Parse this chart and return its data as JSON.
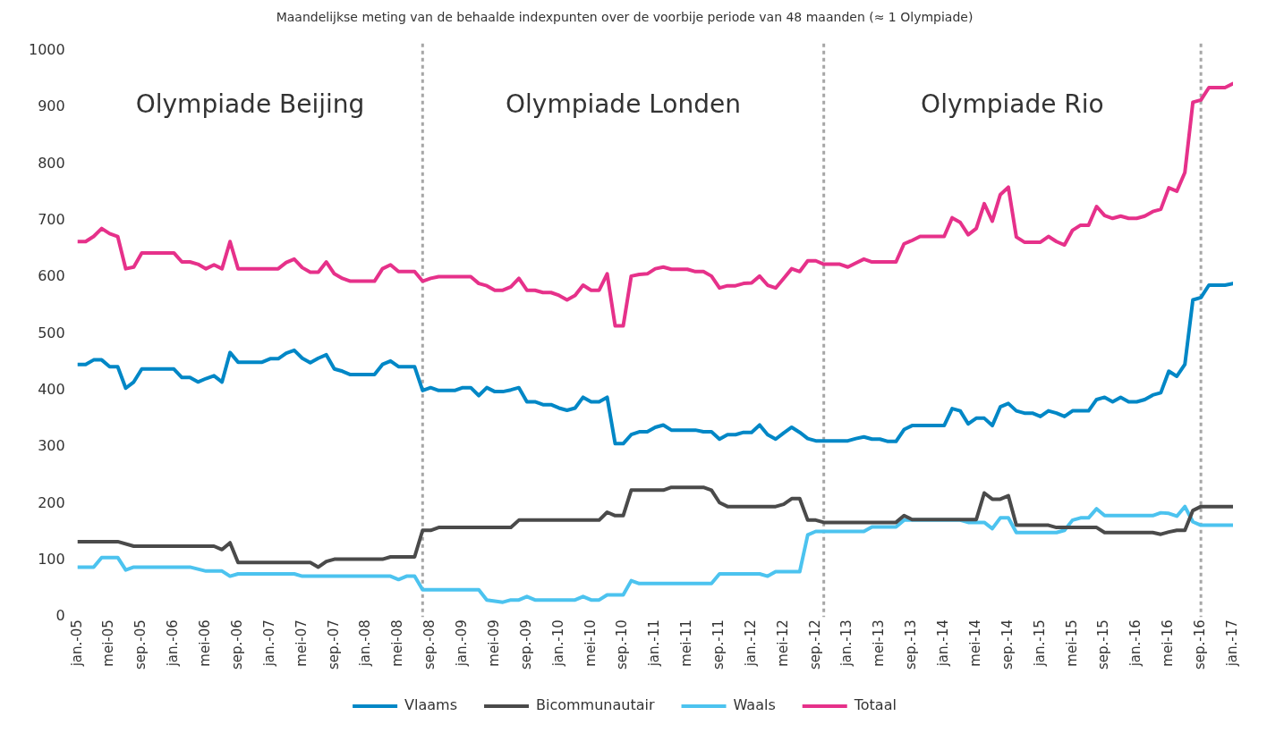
{
  "chart_data": {
    "type": "line",
    "title": "Maandelijkse meting van de behaalde indexpunten over de voorbije periode van 48 maanden (≈ 1 Olympiade)",
    "annotations": [
      "Olympiade Beijing",
      "Olympiade Londen",
      "Olympiade Rio"
    ],
    "series": [
      {
        "name": "Vlaams",
        "color": "#0087c6",
        "x": [
          "2005-01",
          "2005-02",
          "2005-03",
          "2005-04",
          "2005-05",
          "2005-06",
          "2005-07",
          "2005-08",
          "2005-09",
          "2006-01",
          "2006-02",
          "2006-03",
          "2006-04",
          "2006-05",
          "2006-06",
          "2006-07",
          "2006-08",
          "2006-09",
          "2006-12",
          "2007-01",
          "2007-02",
          "2007-03",
          "2007-04",
          "2007-05",
          "2007-06",
          "2007-07",
          "2007-08",
          "2007-09",
          "2007-10",
          "2007-11",
          "2008-02",
          "2008-03",
          "2008-04",
          "2008-05",
          "2008-07",
          "2008-08",
          "2008-09",
          "2008-10",
          "2008-12",
          "2009-01",
          "2009-02",
          "2009-03",
          "2009-04",
          "2009-05",
          "2009-06",
          "2009-07",
          "2009-08",
          "2009-09",
          "2009-10",
          "2009-11",
          "2009-12",
          "2010-01",
          "2010-02",
          "2010-03",
          "2010-04",
          "2010-05",
          "2010-06",
          "2010-07",
          "2010-08",
          "2010-09",
          "2010-10",
          "2010-11",
          "2010-12",
          "2011-01",
          "2011-02",
          "2011-03",
          "2011-06",
          "2011-07",
          "2011-08",
          "2011-09",
          "2011-10",
          "2011-11",
          "2011-12",
          "2012-01",
          "2012-02",
          "2012-03",
          "2012-04",
          "2012-05",
          "2012-06",
          "2012-07",
          "2012-08",
          "2012-09",
          "2013-01",
          "2013-02",
          "2013-03",
          "2013-04",
          "2013-05",
          "2013-06",
          "2013-07",
          "2013-08",
          "2013-09",
          "2014-01",
          "2014-02",
          "2014-03",
          "2014-04",
          "2014-05",
          "2014-06",
          "2014-07",
          "2014-08",
          "2014-09",
          "2014-10",
          "2014-11",
          "2014-12",
          "2015-01",
          "2015-02",
          "2015-03",
          "2015-04",
          "2015-05",
          "2015-07",
          "2015-08",
          "2015-09",
          "2015-10",
          "2015-11",
          "2015-12",
          "2016-01",
          "2016-02",
          "2016-03",
          "2016-04",
          "2016-05",
          "2016-06",
          "2016-07",
          "2016-08",
          "2016-09",
          "2016-10",
          "2016-12",
          "2017-01"
        ],
        "values": [
          446,
          446,
          454,
          454,
          442,
          442,
          404,
          415,
          438,
          438,
          423,
          423,
          415,
          421,
          426,
          415,
          467,
          450,
          450,
          456,
          456,
          466,
          471,
          457,
          449,
          457,
          463,
          438,
          434,
          428,
          428,
          446,
          452,
          442,
          442,
          400,
          405,
          400,
          400,
          405,
          405,
          391,
          405,
          398,
          398,
          401,
          405,
          380,
          380,
          375,
          375,
          369,
          365,
          369,
          388,
          380,
          380,
          388,
          306,
          306,
          322,
          327,
          327,
          335,
          339,
          330,
          330,
          327,
          327,
          314,
          322,
          322,
          326,
          326,
          339,
          322,
          314,
          325,
          335,
          326,
          315,
          311,
          311,
          315,
          318,
          314,
          314,
          310,
          310,
          331,
          338,
          338,
          368,
          364,
          341,
          351,
          351,
          338,
          371,
          377,
          364,
          360,
          360,
          354,
          364,
          360,
          354,
          364,
          364,
          384,
          388,
          380,
          388,
          380,
          380,
          384,
          392,
          396,
          434,
          425,
          446,
          560,
          564,
          586,
          586,
          589
        ]
      },
      {
        "name": "Bicommunautair",
        "color": "#4a4a4a",
        "x": [
          "2005-01",
          "2005-06",
          "2005-08",
          "2006-06",
          "2006-07",
          "2006-08",
          "2006-09",
          "2007-06",
          "2007-07",
          "2007-08",
          "2007-09",
          "2008-03",
          "2008-04",
          "2008-07",
          "2008-08",
          "2008-09",
          "2008-10",
          "2009-07",
          "2009-08",
          "2010-06",
          "2010-07",
          "2010-08",
          "2010-09",
          "2010-10",
          "2011-02",
          "2011-03",
          "2011-07",
          "2011-08",
          "2011-09",
          "2011-10",
          "2012-04",
          "2012-05",
          "2012-06",
          "2012-07",
          "2012-08",
          "2012-09",
          "2012-10",
          "2013-07",
          "2013-08",
          "2013-09",
          "2014-05",
          "2014-06",
          "2014-07",
          "2014-08",
          "2014-09",
          "2014-10",
          "2015-02",
          "2015-03",
          "2015-08",
          "2015-09",
          "2016-03",
          "2016-04",
          "2016-05",
          "2016-06",
          "2016-07",
          "2016-08",
          "2016-09",
          "2017-01"
        ],
        "values": [
          133,
          133,
          125,
          125,
          119,
          131,
          96,
          96,
          88,
          98,
          102,
          102,
          106,
          106,
          153,
          153,
          158,
          158,
          171,
          171,
          185,
          179,
          179,
          224,
          224,
          229,
          229,
          224,
          202,
          195,
          195,
          199,
          209,
          209,
          171,
          171,
          167,
          167,
          179,
          172,
          172,
          219,
          208,
          208,
          214,
          162,
          162,
          158,
          158,
          149,
          149,
          146,
          150,
          153,
          153,
          188,
          195,
          195
        ]
      },
      {
        "name": "Waals",
        "color": "#4cc3ef",
        "x": [
          "2005-01",
          "2005-03",
          "2005-04",
          "2005-06",
          "2005-07",
          "2005-08",
          "2006-03",
          "2006-05",
          "2006-07",
          "2006-08",
          "2006-09",
          "2007-04",
          "2007-05",
          "2008-04",
          "2008-05",
          "2008-06",
          "2008-07",
          "2008-08",
          "2009-03",
          "2009-04",
          "2009-06",
          "2009-07",
          "2009-08",
          "2009-09",
          "2009-10",
          "2010-03",
          "2010-04",
          "2010-05",
          "2010-06",
          "2010-07",
          "2010-09",
          "2010-10",
          "2010-11",
          "2011-08",
          "2011-09",
          "2012-02",
          "2012-03",
          "2012-04",
          "2012-07",
          "2012-08",
          "2012-09",
          "2013-03",
          "2013-04",
          "2013-07",
          "2013-08",
          "2014-03",
          "2014-04",
          "2014-06",
          "2014-07",
          "2014-08",
          "2014-09",
          "2014-10",
          "2015-03",
          "2015-04",
          "2015-05",
          "2015-06",
          "2015-07",
          "2015-08",
          "2015-09",
          "2016-03",
          "2016-04",
          "2016-05",
          "2016-06",
          "2016-07",
          "2016-08",
          "2016-09",
          "2017-01"
        ],
        "values": [
          88,
          88,
          105,
          105,
          83,
          88,
          88,
          81,
          81,
          72,
          76,
          76,
          72,
          72,
          66,
          72,
          72,
          48,
          48,
          30,
          26,
          30,
          30,
          36,
          30,
          30,
          36,
          30,
          30,
          39,
          39,
          64,
          59,
          59,
          76,
          76,
          72,
          80,
          80,
          145,
          151,
          151,
          159,
          159,
          171,
          171,
          167,
          167,
          156,
          175,
          175,
          149,
          149,
          153,
          171,
          175,
          175,
          191,
          179,
          179,
          184,
          183,
          178,
          195,
          168,
          162,
          162
        ]
      },
      {
        "name": "Totaal",
        "color": "#e6318a",
        "x": [
          "2005-01",
          "2005-02",
          "2005-03",
          "2005-04",
          "2005-05",
          "2005-06",
          "2005-07",
          "2005-08",
          "2005-09",
          "2006-01",
          "2006-02",
          "2006-03",
          "2006-04",
          "2006-05",
          "2006-06",
          "2006-07",
          "2006-08",
          "2006-09",
          "2007-02",
          "2007-03",
          "2007-04",
          "2007-05",
          "2007-06",
          "2007-07",
          "2007-08",
          "2007-09",
          "2007-10",
          "2007-11",
          "2008-02",
          "2008-03",
          "2008-04",
          "2008-05",
          "2008-07",
          "2008-08",
          "2008-09",
          "2008-10",
          "2009-02",
          "2009-03",
          "2009-04",
          "2009-05",
          "2009-06",
          "2009-07",
          "2009-08",
          "2009-09",
          "2009-10",
          "2009-11",
          "2009-12",
          "2010-01",
          "2010-02",
          "2010-03",
          "2010-04",
          "2010-05",
          "2010-06",
          "2010-07",
          "2010-08",
          "2010-09",
          "2010-10",
          "2010-11",
          "2010-12",
          "2011-01",
          "2011-02",
          "2011-03",
          "2011-05",
          "2011-06",
          "2011-07",
          "2011-08",
          "2011-09",
          "2011-10",
          "2011-11",
          "2011-12",
          "2012-01",
          "2012-02",
          "2012-03",
          "2012-04",
          "2012-05",
          "2012-06",
          "2012-07",
          "2012-08",
          "2012-09",
          "2012-10",
          "2012-12",
          "2013-01",
          "2013-02",
          "2013-03",
          "2013-04",
          "2013-07",
          "2013-08",
          "2013-09",
          "2013-10",
          "2014-01",
          "2014-02",
          "2014-03",
          "2014-04",
          "2014-05",
          "2014-06",
          "2014-07",
          "2014-08",
          "2014-09",
          "2014-10",
          "2014-11",
          "2015-01",
          "2015-02",
          "2015-03",
          "2015-04",
          "2015-05",
          "2015-06",
          "2015-07",
          "2015-08",
          "2015-09",
          "2015-10",
          "2015-11",
          "2015-12",
          "2016-01",
          "2016-02",
          "2016-03",
          "2016-04",
          "2016-05",
          "2016-06",
          "2016-07",
          "2016-08",
          "2016-09",
          "2016-10",
          "2016-12",
          "2017-01"
        ],
        "values": [
          663,
          663,
          672,
          686,
          677,
          672,
          615,
          618,
          643,
          643,
          627,
          627,
          623,
          615,
          622,
          615,
          663,
          615,
          615,
          626,
          632,
          617,
          609,
          609,
          627,
          606,
          598,
          593,
          593,
          615,
          622,
          610,
          610,
          593,
          598,
          601,
          601,
          589,
          585,
          577,
          577,
          583,
          598,
          577,
          577,
          573,
          573,
          568,
          560,
          568,
          586,
          577,
          577,
          606,
          514,
          514,
          602,
          605,
          606,
          615,
          618,
          614,
          614,
          610,
          610,
          602,
          581,
          585,
          585,
          589,
          590,
          602,
          586,
          581,
          598,
          615,
          610,
          629,
          629,
          623,
          623,
          618,
          625,
          632,
          627,
          627,
          659,
          665,
          672,
          672,
          705,
          697,
          675,
          686,
          730,
          699,
          746,
          759,
          671,
          662,
          662,
          672,
          663,
          657,
          683,
          692,
          692,
          725,
          709,
          704,
          708,
          704,
          704,
          708,
          716,
          720,
          758,
          752,
          785,
          909,
          913,
          935,
          935,
          942
        ]
      }
    ],
    "xlim": [
      "2005-01",
      "2017-01"
    ],
    "xticks": [
      {
        "value": "2005-01",
        "label": "jan.-05"
      },
      {
        "value": "2005-05",
        "label": "mei-05"
      },
      {
        "value": "2005-09",
        "label": "sep.-05"
      },
      {
        "value": "2006-01",
        "label": "jan.-06"
      },
      {
        "value": "2006-05",
        "label": "mei-06"
      },
      {
        "value": "2006-09",
        "label": "sep.-06"
      },
      {
        "value": "2007-01",
        "label": "jan.-07"
      },
      {
        "value": "2007-05",
        "label": "mei-07"
      },
      {
        "value": "2007-09",
        "label": "sep.-07"
      },
      {
        "value": "2008-01",
        "label": "jan.-08"
      },
      {
        "value": "2008-05",
        "label": "mei-08"
      },
      {
        "value": "2008-09",
        "label": "sep.-08"
      },
      {
        "value": "2009-01",
        "label": "jan.-09"
      },
      {
        "value": "2009-05",
        "label": "mei-09"
      },
      {
        "value": "2009-09",
        "label": "sep.-09"
      },
      {
        "value": "2010-01",
        "label": "jan.-10"
      },
      {
        "value": "2010-05",
        "label": "mei-10"
      },
      {
        "value": "2010-09",
        "label": "sep.-10"
      },
      {
        "value": "2011-01",
        "label": "jan.-11"
      },
      {
        "value": "2011-05",
        "label": "mei-11"
      },
      {
        "value": "2011-09",
        "label": "sep.-11"
      },
      {
        "value": "2012-01",
        "label": "jan.-12"
      },
      {
        "value": "2012-05",
        "label": "mei-12"
      },
      {
        "value": "2012-09",
        "label": "sep.-12"
      },
      {
        "value": "2013-01",
        "label": "jan.-13"
      },
      {
        "value": "2013-05",
        "label": "mei-13"
      },
      {
        "value": "2013-09",
        "label": "sep.-13"
      },
      {
        "value": "2014-01",
        "label": "jan.-14"
      },
      {
        "value": "2014-05",
        "label": "mei-14"
      },
      {
        "value": "2014-09",
        "label": "sep.-14"
      },
      {
        "value": "2015-01",
        "label": "jan.-15"
      },
      {
        "value": "2015-05",
        "label": "mei-15"
      },
      {
        "value": "2015-09",
        "label": "sep.-15"
      },
      {
        "value": "2016-01",
        "label": "jan.-16"
      },
      {
        "value": "2016-05",
        "label": "mei-16"
      },
      {
        "value": "2016-09",
        "label": "sep.-16"
      },
      {
        "value": "2017-01",
        "label": "jan.-17"
      }
    ],
    "ylim": [
      0,
      1000
    ],
    "yticks": [
      0,
      100,
      200,
      300,
      400,
      500,
      600,
      700,
      800,
      900,
      1000
    ],
    "ref_lines": [
      {
        "axis": "x",
        "value": "2008-08",
        "color": "#a6a6a6",
        "line_style": "dotted"
      },
      {
        "axis": "x",
        "value": "2012-10",
        "color": "#a6a6a6",
        "line_style": "dotted"
      },
      {
        "axis": "x",
        "value": "2016-09",
        "color": "#a6a6a6",
        "line_style": "dotted"
      }
    ],
    "legend": "bottom",
    "marker": "none",
    "line_style": "solid"
  }
}
